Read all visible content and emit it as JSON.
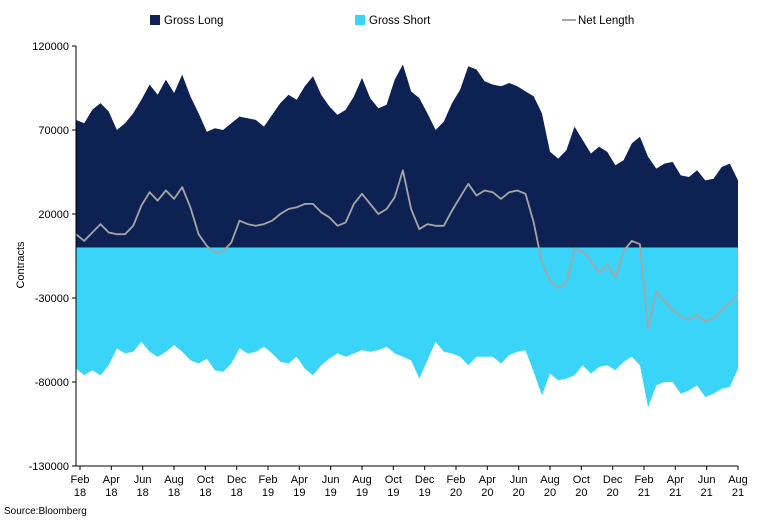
{
  "chart_data": {
    "type": "area",
    "ylabel": "Contracts",
    "ylim": [
      -130000,
      120000
    ],
    "yticks": [
      120000,
      70000,
      20000,
      -30000,
      -80000,
      -130000
    ],
    "x_ticks": [
      {
        "month": "Feb",
        "year": "18"
      },
      {
        "month": "Apr",
        "year": "18"
      },
      {
        "month": "Jun",
        "year": "18"
      },
      {
        "month": "Aug",
        "year": "18"
      },
      {
        "month": "Oct",
        "year": "18"
      },
      {
        "month": "Dec",
        "year": "18"
      },
      {
        "month": "Feb",
        "year": "19"
      },
      {
        "month": "Apr",
        "year": "19"
      },
      {
        "month": "Jun",
        "year": "19"
      },
      {
        "month": "Aug",
        "year": "19"
      },
      {
        "month": "Oct",
        "year": "19"
      },
      {
        "month": "Dec",
        "year": "19"
      },
      {
        "month": "Feb",
        "year": "20"
      },
      {
        "month": "Apr",
        "year": "20"
      },
      {
        "month": "Jun",
        "year": "20"
      },
      {
        "month": "Aug",
        "year": "20"
      },
      {
        "month": "Oct",
        "year": "20"
      },
      {
        "month": "Dec",
        "year": "20"
      },
      {
        "month": "Feb",
        "year": "21"
      },
      {
        "month": "Apr",
        "year": "21"
      },
      {
        "month": "Jun",
        "year": "21"
      },
      {
        "month": "Aug",
        "year": "21"
      }
    ],
    "legend_position": "top",
    "grid": false,
    "series": [
      {
        "name": "Gross Long",
        "kind": "area",
        "color": "#0d2252",
        "values": [
          76000,
          74000,
          82000,
          86000,
          81000,
          70000,
          74000,
          80000,
          88000,
          97000,
          91000,
          100000,
          92000,
          103000,
          90000,
          80000,
          69000,
          71000,
          70000,
          74000,
          78000,
          77000,
          76000,
          72000,
          79000,
          86000,
          91000,
          88000,
          96000,
          102000,
          91000,
          84000,
          79000,
          82000,
          90000,
          101000,
          89000,
          83000,
          85000,
          100000,
          109000,
          93000,
          89000,
          80000,
          70000,
          75000,
          86000,
          94000,
          108000,
          106000,
          99000,
          97000,
          96000,
          98000,
          96000,
          93000,
          90000,
          80000,
          57000,
          53000,
          58000,
          72000,
          64000,
          56000,
          60000,
          57000,
          49000,
          52000,
          62000,
          66000,
          54000,
          47000,
          50000,
          51000,
          43000,
          42000,
          46000,
          40000,
          41000,
          48000,
          50000,
          40000
        ]
      },
      {
        "name": "Gross Short",
        "kind": "area",
        "color": "#39d4f8",
        "values": [
          -72000,
          -76000,
          -73000,
          -76000,
          -70000,
          -60000,
          -63000,
          -62000,
          -56000,
          -62000,
          -65000,
          -62000,
          -58000,
          -62000,
          -67000,
          -69000,
          -66000,
          -73000,
          -74000,
          -69000,
          -60000,
          -63000,
          -62000,
          -59000,
          -63000,
          -68000,
          -69000,
          -65000,
          -72000,
          -76000,
          -70000,
          -66000,
          -63000,
          -65000,
          -63000,
          -61000,
          -62000,
          -61000,
          -59000,
          -63000,
          -65000,
          -67000,
          -78000,
          -67000,
          -56000,
          -62000,
          -63000,
          -65000,
          -70000,
          -65000,
          -65000,
          -65000,
          -69000,
          -64000,
          -62000,
          -61000,
          -74000,
          -88000,
          -75000,
          -79000,
          -78000,
          -76000,
          -70000,
          -75000,
          -71000,
          -70000,
          -73000,
          -68000,
          -65000,
          -70000,
          -95000,
          -82000,
          -80000,
          -80000,
          -87000,
          -85000,
          -82000,
          -89000,
          -87000,
          -84000,
          -83000,
          -72000
        ]
      },
      {
        "name": "Net Length",
        "kind": "line",
        "color": "#a6a6a6",
        "values": [
          8000,
          4000,
          9000,
          14000,
          9000,
          8000,
          8000,
          13000,
          25000,
          33000,
          28000,
          34000,
          29000,
          36000,
          24000,
          8000,
          1000,
          -3000,
          -2000,
          3000,
          16000,
          14000,
          13000,
          14000,
          16000,
          20000,
          23000,
          24000,
          26000,
          26000,
          21000,
          18000,
          13000,
          15000,
          26000,
          32000,
          26000,
          20000,
          23000,
          30000,
          46000,
          23000,
          11000,
          14000,
          13000,
          13000,
          22000,
          30000,
          38000,
          31000,
          34000,
          33000,
          29000,
          33000,
          34000,
          32000,
          15000,
          -9000,
          -20000,
          -24000,
          -21000,
          -1000,
          -2000,
          -8000,
          -15000,
          -10000,
          -18000,
          -2000,
          4000,
          2000,
          -48000,
          -26000,
          -32000,
          -37000,
          -41000,
          -43000,
          -40000,
          -44000,
          -42000,
          -37000,
          -33000,
          -28000
        ]
      }
    ]
  },
  "source_text": "Source:Bloomberg"
}
